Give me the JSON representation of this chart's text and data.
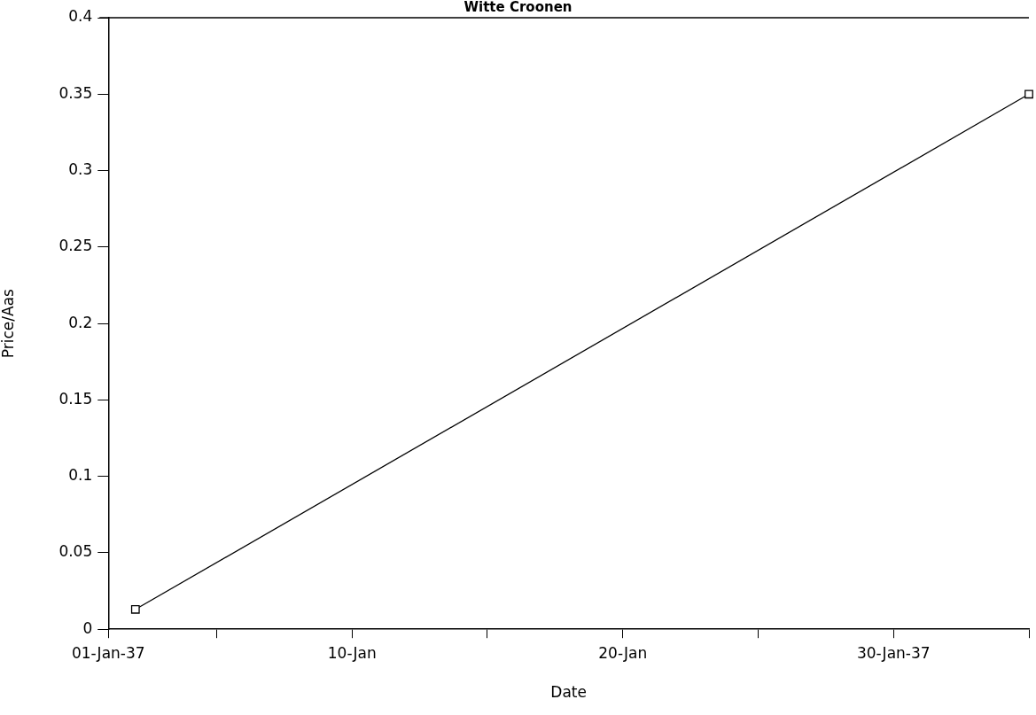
{
  "chart_data": {
    "type": "line",
    "title": "Witte Croonen",
    "xlabel": "Date",
    "ylabel": "Price/Aas",
    "x": [
      "1637-01-02",
      "1637-02-04"
    ],
    "values": [
      0.013,
      0.35
    ],
    "color": "#000000",
    "marker": "square",
    "line_style": "solid",
    "grid": false,
    "legend": false,
    "xlim": [
      "1637-01-01",
      "1637-02-04"
    ],
    "xticks": [
      {
        "value": "1637-01-01",
        "label": "01-Jan-37"
      },
      {
        "value": "1637-01-05",
        "label": null
      },
      {
        "value": "1637-01-10",
        "label": "10-Jan"
      },
      {
        "value": "1637-01-15",
        "label": null
      },
      {
        "value": "1637-01-20",
        "label": "20-Jan"
      },
      {
        "value": "1637-01-25",
        "label": null
      },
      {
        "value": "1637-01-30",
        "label": "30-Jan-37"
      },
      {
        "value": "1637-02-04",
        "label": null
      }
    ],
    "ylim": [
      0,
      0.4
    ],
    "yticks": [
      0,
      0.05,
      0.1,
      0.15,
      0.2,
      0.25,
      0.3,
      0.35,
      0.4
    ]
  }
}
